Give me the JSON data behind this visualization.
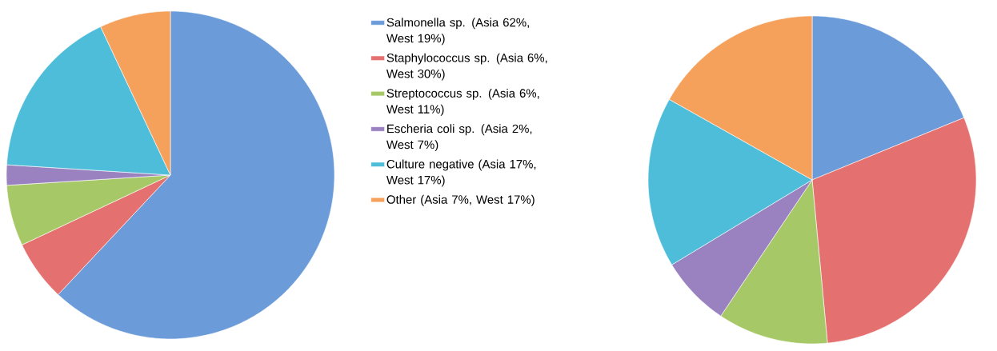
{
  "chart_data": {
    "type": "pie",
    "categories": [
      "Salmonella sp. (Asia 62%, West 19%)",
      "Staphylococcus sp. (Asia 6%, West 30%)",
      "Streptococcus sp. (Asia 6%, West 11%)",
      "Escheria coli sp. (Asia 2%, West 7%)",
      "Culture negative (Asia 17%, West 17%)",
      "Other (Asia 7%, West 17%)"
    ],
    "colors": [
      "#6b9bd8",
      "#e4716f",
      "#a7c866",
      "#9a82c0",
      "#4dbdd9",
      "#f5a15c"
    ],
    "series": [
      {
        "values": [
          62,
          6,
          6,
          2,
          17,
          7
        ]
      },
      {
        "values": [
          19,
          30,
          11,
          7,
          17,
          17
        ]
      }
    ],
    "legend": "right"
  }
}
